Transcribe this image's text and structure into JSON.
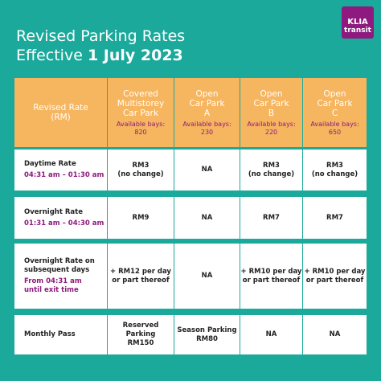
{
  "header": {
    "title_line1": "Revised Parking Rates",
    "title_line2_prefix": "Effective",
    "title_line2_bold": "1 July 2023"
  },
  "logo": {
    "line1": "KLIA",
    "line2": "transit"
  },
  "table": {
    "columns": [
      {
        "name": [
          "Revised Rate",
          "(RM)"
        ]
      },
      {
        "name": [
          "Covered",
          "Multistorey",
          "Car Park"
        ],
        "bays_label": "Available bays:",
        "bays": 820
      },
      {
        "name": [
          "Open",
          "Car Park",
          "A"
        ],
        "bays_label": "Available bays:",
        "bays": 230
      },
      {
        "name": [
          "Open",
          "Car Park",
          "B"
        ],
        "bays_label": "Available bays:",
        "bays": 220
      },
      {
        "name": [
          "Open",
          "Car Park",
          "C"
        ],
        "bays_label": "Available bays:",
        "bays": 650
      }
    ],
    "rows": [
      {
        "label": [
          "Daytime Rate"
        ],
        "time": [
          "04:31 am – 01:30 am"
        ],
        "cells": [
          [
            "RM3",
            "(no change)"
          ],
          [
            "NA"
          ],
          [
            "RM3",
            "(no change)"
          ],
          [
            "RM3",
            "(no change)"
          ]
        ]
      },
      {
        "label": [
          "Overnight Rate"
        ],
        "time": [
          "01:31 am – 04:30 am"
        ],
        "cells": [
          [
            "RM9"
          ],
          [
            "NA"
          ],
          [
            "RM7"
          ],
          [
            "RM7"
          ]
        ]
      },
      {
        "label": [
          "Overnight Rate on",
          "subsequent days"
        ],
        "time": [
          "From 04:31 am",
          "until exit time"
        ],
        "cells": [
          [
            "+ RM12 per day",
            "or part thereof"
          ],
          [
            "NA"
          ],
          [
            "+ RM10 per day",
            "or part thereof"
          ],
          [
            "+ RM10 per day",
            "or part thereof"
          ]
        ]
      },
      {
        "label": [
          "Monthly Pass"
        ],
        "cells": [
          [
            "Reserved",
            "Parking",
            "RM150"
          ],
          [
            "Season Parking",
            "RM80"
          ],
          [
            "NA"
          ],
          [
            "NA"
          ]
        ]
      }
    ]
  }
}
